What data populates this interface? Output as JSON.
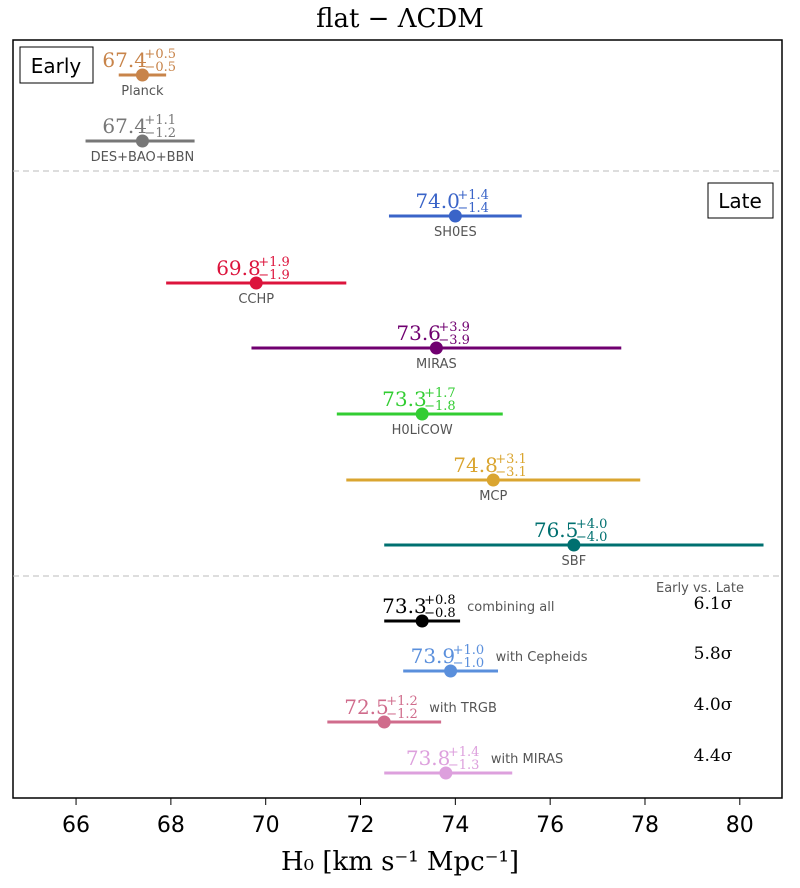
{
  "chart_data": {
    "type": "errorbar",
    "title": "flat − ΛCDM",
    "xlabel": "H₀ [km s⁻¹ Mpc⁻¹]",
    "xlim": [
      64.67,
      80.89
    ],
    "xticks": [
      66,
      68,
      70,
      72,
      74,
      76,
      78,
      80
    ],
    "grid": false,
    "groups": [
      {
        "label": "Early",
        "label_position": "top-left"
      },
      {
        "label": "Late",
        "label_position": "top-right"
      }
    ],
    "side_header": "Early vs. Late",
    "series": [
      {
        "name": "Planck",
        "group": "early",
        "value": 67.4,
        "plus": 0.5,
        "minus": 0.5,
        "color": "#c8844a"
      },
      {
        "name": "DES+BAO+BBN",
        "group": "early",
        "value": 67.4,
        "plus": 1.1,
        "minus": 1.2,
        "color": "#777777"
      },
      {
        "name": "SH0ES",
        "group": "late",
        "value": 74.0,
        "plus": 1.4,
        "minus": 1.4,
        "color": "#3a64c8"
      },
      {
        "name": "CCHP",
        "group": "late",
        "value": 69.8,
        "plus": 1.9,
        "minus": 1.9,
        "color": "#dc143c"
      },
      {
        "name": "MIRAS",
        "group": "late",
        "value": 73.6,
        "plus": 3.9,
        "minus": 3.9,
        "color": "#700070"
      },
      {
        "name": "H0LiCOW",
        "group": "late",
        "value": 73.3,
        "plus": 1.7,
        "minus": 1.8,
        "color": "#32cd32"
      },
      {
        "name": "MCP",
        "group": "late",
        "value": 74.8,
        "plus": 3.1,
        "minus": 3.1,
        "color": "#daa530"
      },
      {
        "name": "SBF",
        "group": "late",
        "value": 76.5,
        "plus": 4.0,
        "minus": 4.0,
        "color": "#007070"
      },
      {
        "name": "combining all",
        "group": "combined",
        "value": 73.3,
        "plus": 0.8,
        "minus": 0.8,
        "color": "#000000",
        "tension": "6.1σ"
      },
      {
        "name": "with Cepheids",
        "group": "combined",
        "value": 73.9,
        "plus": 1.0,
        "minus": 1.0,
        "color": "#5a8fdc",
        "tension": "5.8σ"
      },
      {
        "name": "with TRGB",
        "group": "combined",
        "value": 72.5,
        "plus": 1.2,
        "minus": 1.2,
        "color": "#d06c8c",
        "tension": "4.0σ"
      },
      {
        "name": "with MIRAS",
        "group": "combined",
        "value": 73.8,
        "plus": 1.4,
        "minus": 1.3,
        "color": "#dda0dd",
        "tension": "4.4σ"
      }
    ]
  }
}
